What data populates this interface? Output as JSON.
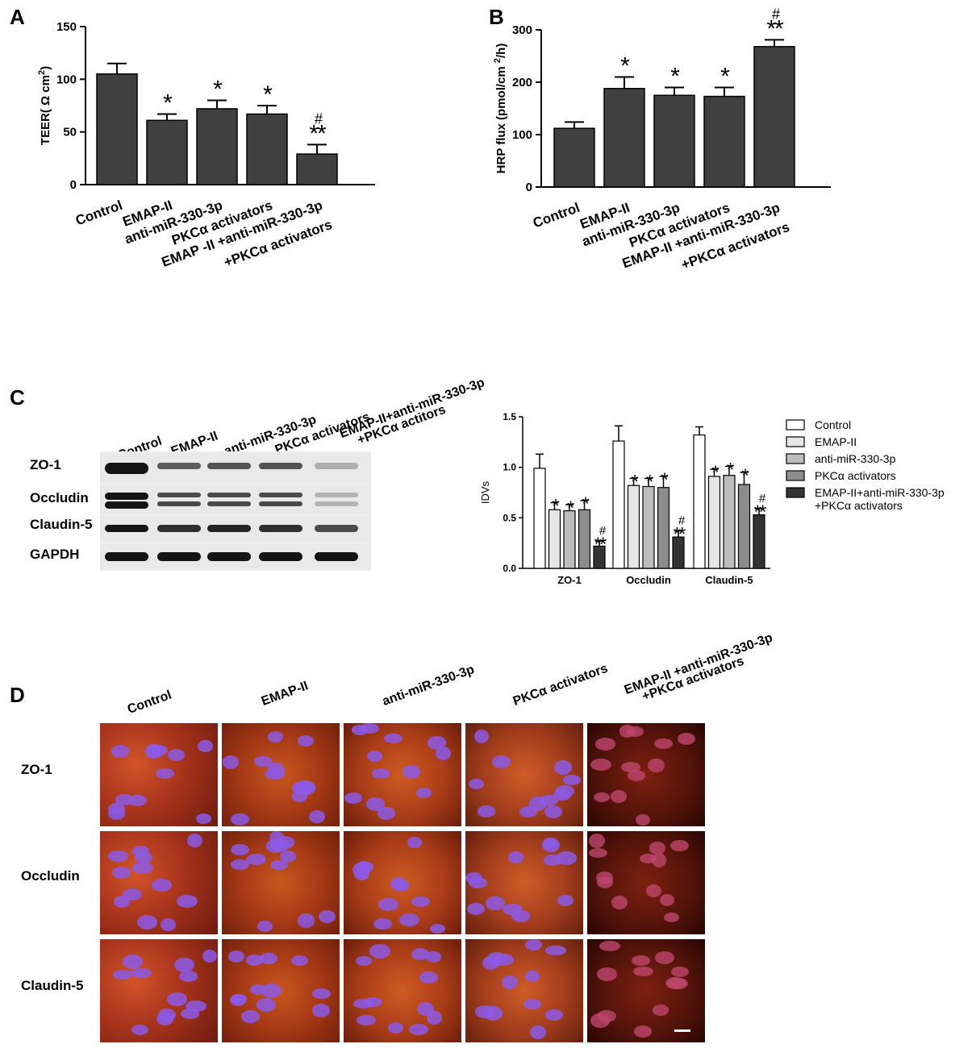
{
  "panels": {
    "A": "A",
    "B": "B",
    "C": "C",
    "D": "D"
  },
  "chart_data": [
    {
      "panel": "A",
      "type": "bar",
      "ylabel": "TEER( Ω cm²)",
      "ylabel_parts": {
        "pre": "TEER( Ω cm",
        "sup": "2",
        "post": ")"
      },
      "ylim": [
        0,
        150
      ],
      "yticks": [
        0,
        50,
        100,
        150
      ],
      "categories": [
        "Control",
        "EMAP-II",
        "anti-miR-330-3p",
        "PKCα activators",
        "EMAP -II  +anti-miR-330-3p|+PKCα activators"
      ],
      "values": [
        105,
        61,
        72,
        67,
        29
      ],
      "errors": [
        10,
        6,
        8,
        8,
        9
      ],
      "annotations": [
        "",
        "*",
        "*",
        "*",
        "**"
      ],
      "hash": [
        "",
        "",
        "",
        "",
        "#"
      ],
      "color": "#404040"
    },
    {
      "panel": "B",
      "type": "bar",
      "ylabel": "HRP flux (pmol/cm²/h)",
      "ylabel_parts": {
        "pre": "HRP flux (pmol/cm ",
        "sup": "2",
        "post": "/h)"
      },
      "ylim": [
        0,
        300
      ],
      "yticks": [
        0,
        100,
        200,
        300
      ],
      "categories": [
        "Control",
        "EMAP-II",
        "anti-miR-330-3p",
        "PKCα activators",
        "EMAP-II  +anti-miR-330-3p|+PKCα activators"
      ],
      "values": [
        112,
        188,
        175,
        173,
        268
      ],
      "errors": [
        12,
        22,
        15,
        17,
        13
      ],
      "annotations": [
        "",
        "*",
        "*",
        "*",
        "**"
      ],
      "hash": [
        "",
        "",
        "",
        "",
        "#"
      ],
      "color": "#404040"
    },
    {
      "panel": "C",
      "type": "bar",
      "ylabel": "IDVs",
      "ylim": [
        0,
        1.5
      ],
      "yticks": [
        "0.0",
        "0.5",
        "1.0",
        "1.5"
      ],
      "categories": [
        "ZO-1",
        "Occludin",
        "Claudin-5"
      ],
      "series": [
        {
          "name": "Control",
          "values": [
            0.99,
            1.26,
            1.32
          ],
          "errors": [
            0.14,
            0.15,
            0.08
          ],
          "annotations": [
            "",
            "",
            ""
          ],
          "hash": [
            "",
            "",
            ""
          ],
          "color": "#ffffff"
        },
        {
          "name": "EMAP-II",
          "values": [
            0.58,
            0.82,
            0.91
          ],
          "errors": [
            0.07,
            0.07,
            0.07
          ],
          "annotations": [
            "*",
            "*",
            "*"
          ],
          "hash": [
            "",
            "",
            ""
          ],
          "color": "#e6e6e6"
        },
        {
          "name": "anti-miR-330-3p",
          "values": [
            0.57,
            0.81,
            0.92
          ],
          "errors": [
            0.06,
            0.08,
            0.09
          ],
          "annotations": [
            "*",
            "*",
            "*"
          ],
          "hash": [
            "",
            "",
            ""
          ],
          "color": "#bdbdbd"
        },
        {
          "name": "PKCα  activators",
          "values": [
            0.58,
            0.8,
            0.83
          ],
          "errors": [
            0.09,
            0.11,
            0.12
          ],
          "annotations": [
            "*",
            "*",
            "*"
          ],
          "hash": [
            "",
            "",
            ""
          ],
          "color": "#8c8c8c"
        },
        {
          "name": "EMAP-II+anti-miR-330-3p|+PKCα activators",
          "values": [
            0.22,
            0.31,
            0.53
          ],
          "errors": [
            0.05,
            0.06,
            0.06
          ],
          "annotations": [
            "**",
            "**",
            "**"
          ],
          "hash": [
            "#",
            "#",
            "#"
          ],
          "color": "#333333"
        }
      ],
      "legend": "right"
    }
  ],
  "western_blot": {
    "lanes": [
      "Control",
      "EMAP-II",
      "anti-miR-330-3p",
      "PKCα activators",
      "EMAP-II+anti-miR-330-3p|+PKCα actitors"
    ],
    "rows": [
      {
        "label": "ZO-1",
        "intensity": [
          1.0,
          0.6,
          0.65,
          0.65,
          0.15
        ]
      },
      {
        "label": "Occludin",
        "intensity": [
          1.0,
          0.7,
          0.7,
          0.7,
          0.12
        ]
      },
      {
        "label": "Claudin-5",
        "intensity": [
          1.0,
          0.85,
          0.9,
          0.85,
          0.7
        ]
      },
      {
        "label": "GAPDH",
        "intensity": [
          1.0,
          1.0,
          1.0,
          1.0,
          1.0
        ]
      }
    ]
  },
  "immunofluorescence": {
    "columns": [
      "Control",
      "EMAP-II",
      "anti-miR-330-3p",
      "PKCα activators",
      "EMAP-II +anti-miR-330-3p|+PKCα activators"
    ],
    "rows": [
      "ZO-1",
      "Occludin",
      "Claudin-5"
    ]
  }
}
